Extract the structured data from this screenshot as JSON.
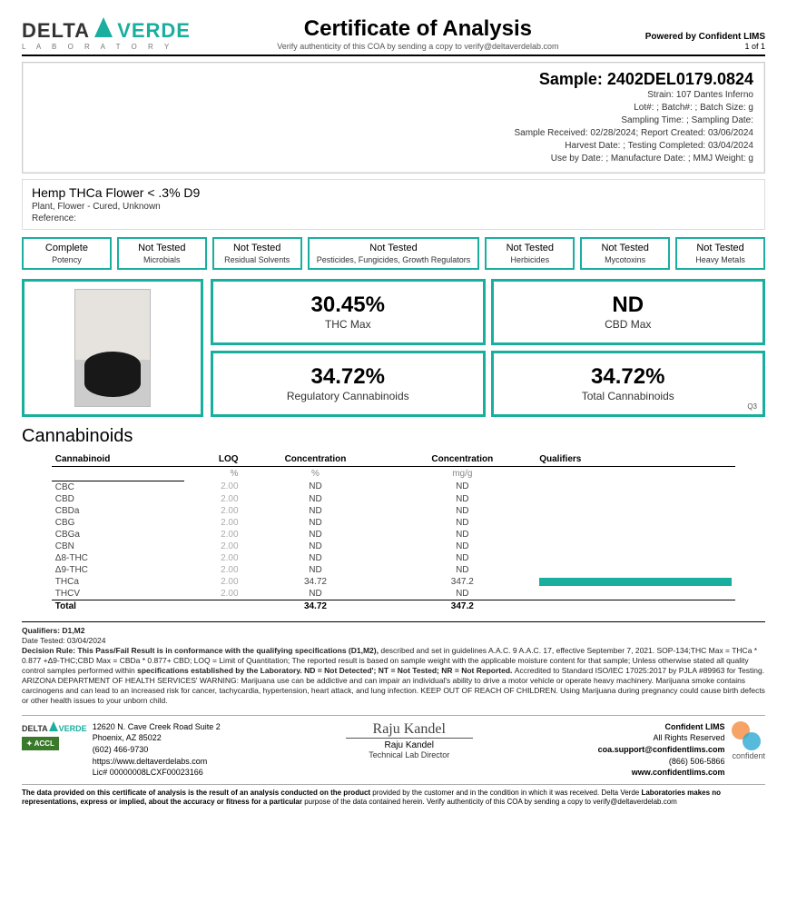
{
  "header": {
    "lab_name_1": "DELTA",
    "lab_name_2": "VERDE",
    "lab_sub": "L A B O R A T O R Y",
    "title": "Certificate of Analysis",
    "verify": "Verify authenticity of this COA by sending a copy to verify@deltaverdelab.com",
    "powered": "Powered by Confident LIMS",
    "page": "1 of 1"
  },
  "sample": {
    "title": "Sample: 2402DEL0179.0824",
    "l1": "Strain: 107 Dantes Inferno",
    "l2": "Lot#: ; Batch#: ; Batch Size:  g",
    "l3": "Sampling Time: ; Sampling Date:",
    "l4": "Sample Received: 02/28/2024; Report Created: 03/06/2024",
    "l5": "Harvest Date: ; Testing Completed: 03/04/2024",
    "l6": "Use by Date: ; Manufacture Date: ; MMJ Weight: g"
  },
  "product": {
    "name": "Hemp THCa Flower < .3% D9",
    "sub": "Plant, Flower - Cured, Unknown",
    "ref": "Reference:"
  },
  "status": [
    {
      "top": "Complete",
      "bot": "Potency",
      "wide": false
    },
    {
      "top": "Not Tested",
      "bot": "Microbials",
      "wide": false
    },
    {
      "top": "Not Tested",
      "bot": "Residual Solvents",
      "wide": false
    },
    {
      "top": "Not Tested",
      "bot": "Pesticides, Fungicides, Growth Regulators",
      "wide": true
    },
    {
      "top": "Not Tested",
      "bot": "Herbicides",
      "wide": false
    },
    {
      "top": "Not Tested",
      "bot": "Mycotoxins",
      "wide": false
    },
    {
      "top": "Not Tested",
      "bot": "Heavy Metals",
      "wide": false
    }
  ],
  "metrics": {
    "thc_val": "30.45%",
    "thc_lbl": "THC Max",
    "cbd_val": "ND",
    "cbd_lbl": "CBD Max",
    "reg_val": "34.72%",
    "reg_lbl": "Regulatory Cannabinoids",
    "tot_val": "34.72%",
    "tot_lbl": "Total Cannabinoids",
    "q3": "Q3"
  },
  "cann": {
    "title": "Cannabinoids",
    "h": {
      "c0": "Cannabinoid",
      "c1": "LOQ",
      "c2": "Concentration",
      "c3": "Concentration",
      "c4": "Qualifiers"
    },
    "u": {
      "u1": "%",
      "u2": "%",
      "u3": "mg/g"
    },
    "rows": [
      {
        "n": "CBC",
        "loq": "2.00",
        "p": "ND",
        "m": "ND",
        "bar": 0
      },
      {
        "n": "CBD",
        "loq": "2.00",
        "p": "ND",
        "m": "ND",
        "bar": 0
      },
      {
        "n": "CBDa",
        "loq": "2.00",
        "p": "ND",
        "m": "ND",
        "bar": 0
      },
      {
        "n": "CBG",
        "loq": "2.00",
        "p": "ND",
        "m": "ND",
        "bar": 0
      },
      {
        "n": "CBGa",
        "loq": "2.00",
        "p": "ND",
        "m": "ND",
        "bar": 0
      },
      {
        "n": "CBN",
        "loq": "2.00",
        "p": "ND",
        "m": "ND",
        "bar": 0
      },
      {
        "n": "Δ8-THC",
        "loq": "2.00",
        "p": "ND",
        "m": "ND",
        "bar": 0
      },
      {
        "n": "Δ9-THC",
        "loq": "2.00",
        "p": "ND",
        "m": "ND",
        "bar": 0
      },
      {
        "n": "THCa",
        "loq": "2.00",
        "p": "34.72",
        "m": "347.2",
        "bar": 100
      },
      {
        "n": "THCV",
        "loq": "2.00",
        "p": "ND",
        "m": "ND",
        "bar": 0
      }
    ],
    "total": {
      "n": "Total",
      "p": "34.72",
      "m": "347.2"
    }
  },
  "fine": {
    "l1": "Qualifiers: D1,M2",
    "l2": "Date Tested: 03/04/2024",
    "l3a": "Decision Rule: This Pass/Fail Result is in conformance with the qualifying specifications (D1,M2), ",
    "l3b": "described and set in guidelines A.A.C. 9 A.A.C. 17, effective September 7, 2021. SOP-134;THC Max = THCa * 0.877 +Δ9-THC;CBD Max = CBDa * 0.877+ CBD; LOQ = Limit of Quantitation; The reported result is based on sample weight with the applicable moisture content for that sample; Unless otherwise stated all quality control samples performed within ",
    "l3c": "specifications established by the Laboratory. ND = Not Detected'; NT = Not Tested; NR = Not Reported. ",
    "l3d": "Accredited to Standard ISO/IEC 17025:2017 by PJLA #89963 for Testing. ARIZONA DEPARTMENT OF HEALTH SERVICES' WARNING: Marijuana use can be addictive and can impair an individual's ability to drive a motor vehicle or operate heavy machinery. Marijuana smoke contains carcinogens and can lead to an increased risk for cancer, tachycardia, hypertension, heart attack, and lung infection. KEEP OUT OF REACH OF CHILDREN. Using Marijuana during pregnancy could cause birth defects or other health issues to your unborn child."
  },
  "footer": {
    "addr1": "12620 N. Cave Creek Road Suite 2",
    "addr2": "Phoenix, AZ 85022",
    "addr3": "(602) 466-9730",
    "addr4": "https://www.deltaverdelabs.com",
    "addr5": "Lic# 00000008LCXF00023166",
    "sig_name": "Raju Kandel",
    "sig_title": "Technical Lab Director",
    "r1": "Confident LIMS",
    "r2": "All Rights Reserved",
    "r3": "coa.support@confidentlims.com",
    "r4": "(866) 506-5866",
    "r5": "www.confidentlims.com",
    "conf": "confident"
  },
  "disclaimer": {
    "a": "The data provided on this certificate of analysis is the result of an analysis conducted on the product ",
    "b": "provided by the customer and in the condition in which it was received. Delta Verde ",
    "c": "Laboratories makes no representations, express or implied, about the accuracy or fitness for a particular ",
    "d": "purpose of the data contained herein. Verify authenticity of this COA by sending a copy to verify@deltaverdelab.com"
  },
  "colors": {
    "accent": "#1aae9f"
  }
}
